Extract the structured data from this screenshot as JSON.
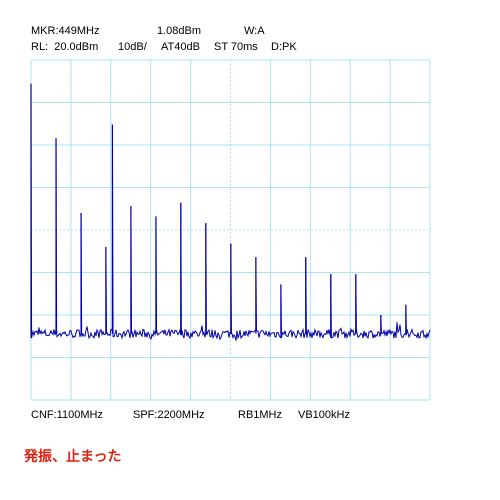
{
  "header": {
    "marker": "MKR:449MHz",
    "marker_level": "1.08dBm",
    "trace_mode": "W:A",
    "ref_level": "RL:  20.0dBm",
    "scale": "10dB/",
    "attenuation": "AT40dB",
    "sweep_time": "ST 70ms",
    "detector": "D:PK"
  },
  "footer": {
    "center_freq": "CNF:1100MHz",
    "span": "SPF:2200MHz",
    "rbw": "RB1MHz",
    "vbw": "VB100kHz"
  },
  "caption": "発振、止まった",
  "colors": {
    "trace": "#0000aa",
    "grid": "#a8e4f4",
    "caption": "#dd2211"
  },
  "chart_data": {
    "type": "line",
    "title": "",
    "xlabel": "",
    "ylabel": "",
    "xlim": [
      0,
      2200
    ],
    "ylim": [
      -80,
      20
    ],
    "x_unit": "MHz",
    "y_unit": "dBm",
    "grid": true,
    "noise_floor_dbm": -60.5,
    "series": [
      {
        "values": [
          {
            "freq": 0,
            "dbm": 13
          },
          {
            "freq": 138,
            "dbm": -3
          },
          {
            "freq": 276,
            "dbm": -25
          },
          {
            "freq": 413,
            "dbm": -35
          },
          {
            "freq": 449,
            "dbm": 1
          },
          {
            "freq": 551,
            "dbm": -23
          },
          {
            "freq": 689,
            "dbm": -26
          },
          {
            "freq": 826,
            "dbm": -22
          },
          {
            "freq": 964,
            "dbm": -28
          },
          {
            "freq": 1102,
            "dbm": -34
          },
          {
            "freq": 1240,
            "dbm": -38
          },
          {
            "freq": 1378,
            "dbm": -46
          },
          {
            "freq": 1515,
            "dbm": -38
          },
          {
            "freq": 1653,
            "dbm": -43
          },
          {
            "freq": 1791,
            "dbm": -43
          },
          {
            "freq": 1929,
            "dbm": -55
          },
          {
            "freq": 2067,
            "dbm": -52
          }
        ]
      }
    ]
  }
}
